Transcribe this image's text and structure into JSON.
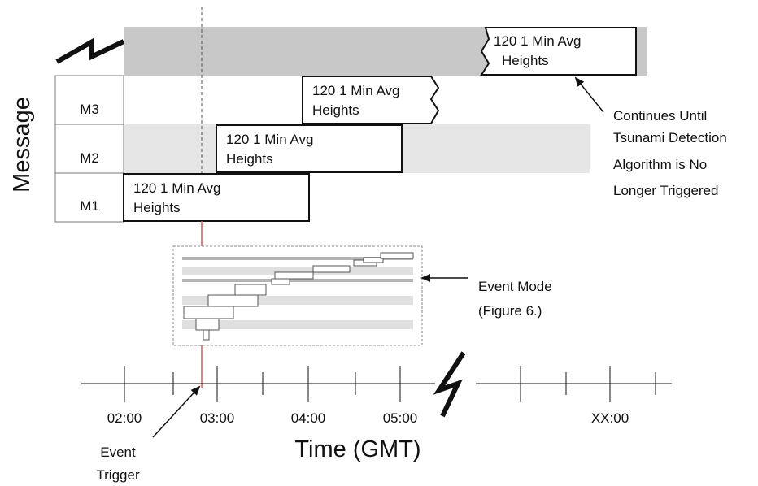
{
  "y_axis_label": "Message",
  "rows": [
    {
      "label": "M3"
    },
    {
      "label": "M2"
    },
    {
      "label": "M1"
    }
  ],
  "message_boxes": [
    {
      "line1": "120  1 Min Avg",
      "line2": "Heights"
    },
    {
      "line1": "120  1 Min Avg",
      "line2": "Heights"
    },
    {
      "line1": "120  1 Min Avg",
      "line2": "Heights"
    },
    {
      "line1": "120  1 Min Avg",
      "line2": "Heights"
    }
  ],
  "continues_note": [
    "Continues Until",
    "Tsunami Detection",
    "Algorithm is No",
    "Longer Triggered"
  ],
  "event_mode_note": [
    "Event Mode",
    "(Figure 6.)"
  ],
  "event_trigger_note": [
    "Event",
    "Trigger"
  ],
  "time_axis": {
    "ticks": [
      "02:00",
      "03:00",
      "04:00",
      "05:00",
      "XX:00"
    ],
    "label": "Time  (GMT)"
  },
  "colors": {
    "band_dark": "#c8c8c8",
    "band_light": "#e6e6e6",
    "event_line": "#e85050",
    "ink": "#111111"
  }
}
